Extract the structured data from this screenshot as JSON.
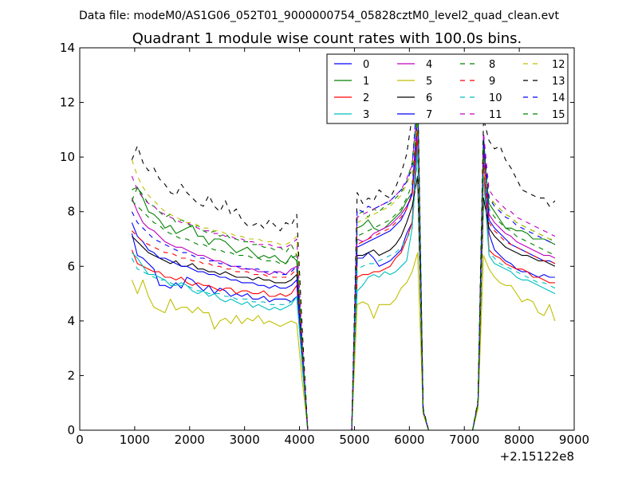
{
  "header": {
    "suptitle": "Data file: modeM0/AS1G06_052T01_9000000754_05828cztM0_level2_quad_clean.evt"
  },
  "chart_data": {
    "type": "line",
    "title": "Quadrant 1 module wise count rates with 100.0s bins.",
    "xlabel": "",
    "ylabel": "",
    "xlim": [
      0,
      9000
    ],
    "ylim": [
      0,
      14
    ],
    "x_offset_label": "+2.15122e8",
    "xticks": [
      0,
      1000,
      2000,
      3000,
      4000,
      5000,
      6000,
      7000,
      8000,
      9000
    ],
    "xtick_labels": [
      "0",
      "1000",
      "2000",
      "3000",
      "4000",
      "5000",
      "6000",
      "7000",
      "8000",
      "9000"
    ],
    "yticks": [
      0,
      2,
      4,
      6,
      8,
      10,
      12,
      14
    ],
    "ytick_labels": [
      "0",
      "2",
      "4",
      "6",
      "8",
      "10",
      "12",
      "14"
    ],
    "legend_position": "top-right",
    "legend_ncol": 4,
    "x": [
      950,
      1050,
      1150,
      1250,
      1350,
      1450,
      1550,
      1650,
      1750,
      1850,
      1950,
      2050,
      2150,
      2250,
      2350,
      2450,
      2550,
      2650,
      2750,
      2850,
      2950,
      3050,
      3150,
      3250,
      3350,
      3450,
      3550,
      3650,
      3750,
      3850,
      3950,
      4050,
      4150,
      4250,
      4950,
      5050,
      5150,
      5250,
      5350,
      5450,
      5550,
      5650,
      5750,
      5850,
      5950,
      6050,
      6150,
      6250,
      6350,
      7150,
      7250,
      7350,
      7450,
      7550,
      7650,
      7750,
      7850,
      7950,
      8050,
      8150,
      8250,
      8350,
      8450,
      8550,
      8650
    ],
    "series": [
      {
        "name": "0",
        "color": "#0000ff",
        "dash": "solid",
        "values": [
          7.2,
          6.4,
          6.3,
          6.1,
          5.9,
          5.3,
          5.3,
          5.2,
          5.4,
          5.2,
          5.6,
          5.5,
          5.3,
          5.1,
          5.3,
          5.0,
          5.2,
          5.1,
          4.9,
          5.0,
          4.9,
          5.0,
          4.8,
          4.8,
          4.9,
          4.7,
          4.8,
          4.8,
          4.8,
          4.7,
          4.9,
          2.5,
          0.0,
          0.0,
          0.0,
          6.3,
          6.3,
          6.5,
          6.3,
          6.0,
          6.1,
          6.2,
          6.4,
          6.6,
          7.2,
          7.6,
          10.9,
          0.7,
          0.0,
          0.0,
          1.0,
          9.8,
          7.2,
          6.6,
          6.4,
          6.2,
          6.1,
          5.9,
          5.8,
          5.8,
          5.7,
          5.6,
          5.7,
          5.6,
          5.6
        ]
      },
      {
        "name": "1",
        "color": "#008000",
        "dash": "solid",
        "values": [
          8.8,
          8.9,
          8.5,
          8.0,
          7.9,
          7.7,
          7.4,
          7.5,
          7.2,
          7.3,
          7.4,
          7.5,
          7.1,
          7.1,
          6.8,
          7.0,
          7.0,
          6.9,
          6.7,
          6.5,
          6.6,
          6.7,
          6.5,
          6.3,
          6.4,
          6.3,
          6.4,
          6.2,
          6.1,
          6.4,
          6.2,
          3.0,
          0.0,
          0.0,
          0.0,
          7.4,
          7.5,
          7.7,
          7.4,
          7.3,
          7.4,
          7.6,
          7.8,
          8.0,
          8.4,
          8.7,
          11.5,
          0.7,
          0.0,
          0.0,
          1.0,
          10.2,
          8.3,
          8.0,
          7.7,
          7.4,
          7.4,
          7.3,
          7.3,
          7.2,
          7.0,
          7.0,
          7.0,
          6.9,
          6.8
        ]
      },
      {
        "name": "2",
        "color": "#ff0000",
        "dash": "solid",
        "values": [
          6.6,
          6.1,
          6.0,
          5.9,
          5.8,
          5.8,
          5.6,
          5.6,
          5.5,
          5.6,
          5.4,
          5.3,
          5.4,
          5.3,
          5.3,
          5.2,
          5.1,
          5.2,
          5.2,
          5.0,
          5.1,
          5.1,
          5.0,
          5.0,
          5.1,
          4.9,
          4.9,
          5.0,
          4.9,
          5.0,
          5.3,
          2.5,
          0.0,
          0.0,
          0.0,
          5.6,
          5.7,
          5.7,
          5.8,
          5.8,
          5.9,
          6.0,
          6.3,
          6.5,
          7.0,
          7.6,
          10.6,
          0.7,
          0.0,
          0.0,
          1.0,
          9.8,
          6.6,
          6.4,
          6.3,
          6.1,
          6.0,
          5.9,
          5.9,
          5.8,
          5.6,
          5.6,
          5.5,
          5.4,
          5.4
        ]
      },
      {
        "name": "3",
        "color": "#00bfbf",
        "dash": "solid",
        "values": [
          6.5,
          6.3,
          6.0,
          5.7,
          5.7,
          5.6,
          5.5,
          5.3,
          5.3,
          5.4,
          5.3,
          5.1,
          5.0,
          5.1,
          4.9,
          5.0,
          4.8,
          4.7,
          4.8,
          4.7,
          4.6,
          4.7,
          4.5,
          4.6,
          4.5,
          4.4,
          4.5,
          4.4,
          4.5,
          4.6,
          4.9,
          2.4,
          0.0,
          0.0,
          0.0,
          5.1,
          5.3,
          5.6,
          5.7,
          5.6,
          5.8,
          5.7,
          5.8,
          6.0,
          6.2,
          7.4,
          10.4,
          0.7,
          0.0,
          0.0,
          1.0,
          9.3,
          6.4,
          6.1,
          6.0,
          5.9,
          5.8,
          5.6,
          5.5,
          5.5,
          5.4,
          5.3,
          5.2,
          5.1,
          5.0
        ]
      },
      {
        "name": "4",
        "color": "#bf00bf",
        "dash": "solid",
        "values": [
          8.5,
          8.0,
          7.6,
          7.4,
          7.3,
          7.1,
          6.9,
          6.8,
          6.7,
          6.7,
          6.6,
          6.5,
          6.4,
          6.4,
          6.3,
          6.2,
          6.2,
          6.1,
          6.0,
          6.0,
          5.9,
          5.9,
          5.9,
          5.8,
          5.8,
          5.7,
          5.8,
          5.8,
          5.7,
          5.9,
          6.0,
          2.9,
          0.0,
          0.0,
          0.0,
          7.0,
          6.9,
          7.0,
          7.2,
          7.3,
          7.4,
          7.5,
          7.7,
          7.9,
          8.2,
          8.6,
          11.0,
          0.7,
          0.0,
          0.0,
          1.0,
          10.3,
          7.9,
          7.6,
          7.4,
          7.2,
          7.1,
          6.9,
          6.8,
          6.7,
          6.6,
          6.5,
          6.4,
          6.4,
          6.3
        ]
      },
      {
        "name": "5",
        "color": "#bfbf00",
        "dash": "solid",
        "values": [
          5.5,
          5.0,
          5.5,
          4.9,
          4.5,
          4.4,
          4.3,
          4.8,
          4.4,
          4.5,
          4.5,
          4.3,
          4.5,
          4.3,
          4.3,
          3.7,
          4.0,
          4.1,
          3.9,
          4.2,
          3.9,
          4.1,
          4.0,
          4.2,
          3.9,
          4.0,
          3.9,
          3.8,
          3.9,
          4.0,
          3.9,
          1.8,
          0.0,
          0.0,
          0.0,
          4.6,
          4.7,
          4.6,
          4.1,
          4.6,
          4.6,
          4.6,
          4.8,
          5.2,
          5.4,
          5.8,
          6.5,
          0.6,
          0.0,
          0.0,
          0.8,
          6.4,
          5.9,
          5.6,
          5.4,
          5.3,
          5.3,
          5.0,
          4.7,
          4.8,
          4.7,
          4.3,
          4.2,
          4.6,
          4.0
        ]
      },
      {
        "name": "6",
        "color": "#000000",
        "dash": "solid",
        "values": [
          7.1,
          6.9,
          6.7,
          6.5,
          6.4,
          6.3,
          6.2,
          6.1,
          6.2,
          6.0,
          6.0,
          6.1,
          5.9,
          5.9,
          5.8,
          5.8,
          5.7,
          5.8,
          5.7,
          5.6,
          5.6,
          5.6,
          5.5,
          5.6,
          5.5,
          5.5,
          5.4,
          5.4,
          5.4,
          5.5,
          5.7,
          2.8,
          0.0,
          0.0,
          0.0,
          6.4,
          6.4,
          6.5,
          6.6,
          6.4,
          6.5,
          6.6,
          6.8,
          7.1,
          7.6,
          8.2,
          9.3,
          0.7,
          0.0,
          0.0,
          1.0,
          8.5,
          7.4,
          7.1,
          6.9,
          6.7,
          6.6,
          6.5,
          6.4,
          6.4,
          6.3,
          6.2,
          6.2,
          6.1,
          6.0
        ]
      },
      {
        "name": "7",
        "color": "#0000ff",
        "dash": "solid",
        "values": [
          7.6,
          7.1,
          6.9,
          6.6,
          6.5,
          6.3,
          6.3,
          6.2,
          6.1,
          6.0,
          6.0,
          5.9,
          5.8,
          5.8,
          5.7,
          5.7,
          5.6,
          5.6,
          5.5,
          5.5,
          5.4,
          5.4,
          5.4,
          5.3,
          5.3,
          5.2,
          5.3,
          5.2,
          5.2,
          5.3,
          5.5,
          2.7,
          0.0,
          0.0,
          0.0,
          6.7,
          6.8,
          6.9,
          7.0,
          7.1,
          7.2,
          7.3,
          7.5,
          7.7,
          8.1,
          8.7,
          11.6,
          0.7,
          0.0,
          0.0,
          1.0,
          10.8,
          7.7,
          7.4,
          7.2,
          7.0,
          6.8,
          6.7,
          6.6,
          6.5,
          6.4,
          6.3,
          6.2,
          6.2,
          6.1
        ]
      },
      {
        "name": "8",
        "color": "#008000",
        "dash": "dashed",
        "values": [
          8.4,
          8.9,
          8.6,
          8.3,
          8.2,
          8.0,
          7.8,
          7.9,
          7.6,
          7.7,
          7.6,
          7.4,
          7.5,
          7.3,
          7.2,
          7.3,
          7.1,
          7.2,
          7.0,
          7.0,
          6.9,
          6.9,
          6.8,
          6.8,
          6.7,
          6.7,
          6.6,
          6.7,
          6.5,
          6.8,
          6.4,
          3.1,
          0.0,
          0.0,
          0.0,
          7.9,
          8.0,
          7.8,
          8.1,
          8.0,
          8.2,
          8.3,
          8.5,
          8.7,
          9.1,
          9.8,
          12.1,
          0.7,
          0.0,
          0.0,
          1.0,
          10.6,
          8.5,
          8.3,
          8.1,
          7.9,
          7.8,
          7.6,
          7.5,
          7.4,
          7.3,
          7.2,
          7.1,
          7.0,
          6.9
        ]
      },
      {
        "name": "9",
        "color": "#ff0000",
        "dash": "dashed",
        "values": [
          7.3,
          7.1,
          6.9,
          6.8,
          6.7,
          6.6,
          6.5,
          6.5,
          6.4,
          6.3,
          6.3,
          6.2,
          6.2,
          6.1,
          6.1,
          6.0,
          6.0,
          5.9,
          5.9,
          5.8,
          5.8,
          5.8,
          5.7,
          5.7,
          5.7,
          5.6,
          5.6,
          5.6,
          5.6,
          5.7,
          5.9,
          2.8,
          0.0,
          0.0,
          0.0,
          6.8,
          6.9,
          7.0,
          7.1,
          7.2,
          7.3,
          7.4,
          7.6,
          7.8,
          8.1,
          8.6,
          11.2,
          0.7,
          0.0,
          0.0,
          1.0,
          10.1,
          7.6,
          7.3,
          7.1,
          6.9,
          6.8,
          6.7,
          6.6,
          6.5,
          6.4,
          6.3,
          6.2,
          6.2,
          6.1
        ]
      },
      {
        "name": "10",
        "color": "#00bfbf",
        "dash": "dashed",
        "values": [
          6.3,
          5.9,
          5.8,
          5.7,
          5.6,
          5.5,
          5.5,
          5.4,
          5.3,
          5.3,
          5.3,
          5.2,
          5.1,
          5.1,
          5.0,
          5.0,
          5.0,
          4.9,
          4.9,
          4.8,
          4.8,
          4.8,
          4.7,
          4.7,
          4.7,
          4.6,
          4.6,
          4.6,
          4.6,
          4.7,
          4.9,
          2.4,
          0.0,
          0.0,
          0.0,
          5.9,
          6.0,
          6.1,
          6.1,
          6.2,
          6.3,
          6.4,
          6.5,
          6.7,
          7.0,
          7.4,
          10.1,
          0.7,
          0.0,
          0.0,
          1.0,
          9.2,
          6.5,
          6.3,
          6.1,
          6.0,
          5.9,
          5.8,
          5.7,
          5.6,
          5.5,
          5.4,
          5.4,
          5.3,
          5.2
        ]
      },
      {
        "name": "11",
        "color": "#bf00bf",
        "dash": "dashed",
        "values": [
          9.3,
          8.8,
          8.5,
          8.3,
          8.2,
          8.0,
          7.9,
          7.8,
          7.7,
          7.6,
          7.6,
          7.5,
          7.4,
          7.3,
          7.3,
          7.2,
          7.2,
          7.1,
          7.1,
          7.0,
          7.0,
          6.9,
          6.9,
          6.8,
          6.8,
          6.8,
          6.7,
          6.7,
          6.7,
          6.8,
          7.0,
          3.3,
          0.0,
          0.0,
          0.0,
          7.8,
          7.9,
          8.0,
          8.1,
          8.2,
          8.3,
          8.4,
          8.6,
          8.8,
          9.2,
          9.7,
          11.9,
          0.7,
          0.0,
          0.0,
          1.0,
          10.9,
          8.8,
          8.5,
          8.3,
          8.1,
          8.0,
          7.8,
          7.7,
          7.6,
          7.5,
          7.4,
          7.3,
          7.2,
          7.1
        ]
      },
      {
        "name": "12",
        "color": "#bfbf00",
        "dash": "dashed",
        "values": [
          9.9,
          9.3,
          8.9,
          8.6,
          8.4,
          8.2,
          8.0,
          7.9,
          7.8,
          7.7,
          7.6,
          7.6,
          7.5,
          7.4,
          7.4,
          7.3,
          7.3,
          7.2,
          7.2,
          7.1,
          7.1,
          7.0,
          7.0,
          7.0,
          6.9,
          6.9,
          6.9,
          6.8,
          6.8,
          6.9,
          7.1,
          3.4,
          0.0,
          0.0,
          0.0,
          7.6,
          7.7,
          7.8,
          7.9,
          8.0,
          8.1,
          8.2,
          8.4,
          8.6,
          9.0,
          9.5,
          11.3,
          0.7,
          0.0,
          0.0,
          1.0,
          9.5,
          8.6,
          8.3,
          8.1,
          7.9,
          7.8,
          7.6,
          7.5,
          7.4,
          7.3,
          7.2,
          7.1,
          7.0,
          7.0
        ]
      },
      {
        "name": "13",
        "color": "#000000",
        "dash": "dashed",
        "values": [
          9.9,
          10.4,
          9.8,
          9.5,
          9.6,
          9.2,
          9.0,
          8.7,
          8.6,
          9.0,
          8.7,
          8.5,
          8.3,
          8.2,
          8.6,
          8.2,
          8.0,
          8.4,
          7.9,
          8.1,
          7.7,
          7.5,
          7.5,
          7.6,
          7.4,
          7.7,
          7.5,
          7.3,
          7.6,
          7.5,
          7.9,
          3.7,
          0.0,
          0.0,
          0.0,
          8.7,
          8.3,
          8.5,
          8.4,
          8.8,
          8.6,
          8.5,
          8.9,
          9.4,
          10.1,
          11.5,
          12.9,
          0.8,
          0.0,
          0.0,
          1.1,
          11.4,
          10.6,
          10.3,
          10.4,
          9.9,
          9.6,
          9.2,
          8.8,
          8.7,
          8.6,
          8.5,
          8.5,
          8.2,
          8.4
        ]
      },
      {
        "name": "14",
        "color": "#0000ff",
        "dash": "dashed",
        "values": [
          8.0,
          7.6,
          7.4,
          7.2,
          7.0,
          6.9,
          6.8,
          6.7,
          6.6,
          6.5,
          6.5,
          6.4,
          6.3,
          6.3,
          6.2,
          6.2,
          6.1,
          6.1,
          6.0,
          6.0,
          6.0,
          5.9,
          5.9,
          5.9,
          5.8,
          5.8,
          5.8,
          5.7,
          5.7,
          5.8,
          6.0,
          2.9,
          0.0,
          0.0,
          0.0,
          8.1,
          8.0,
          8.2,
          8.1,
          8.2,
          8.3,
          8.4,
          8.6,
          8.8,
          9.1,
          9.6,
          12.5,
          0.7,
          0.0,
          0.0,
          1.0,
          10.5,
          8.5,
          8.2,
          8.0,
          7.8,
          7.7,
          7.5,
          7.4,
          7.3,
          7.2,
          7.1,
          7.0,
          6.9,
          6.8
        ]
      },
      {
        "name": "15",
        "color": "#008000",
        "dash": "dashed",
        "values": [
          8.4,
          8.2,
          8.0,
          7.8,
          7.6,
          7.5,
          7.3,
          7.2,
          7.1,
          7.0,
          7.0,
          6.9,
          6.8,
          6.8,
          6.7,
          6.6,
          6.6,
          6.5,
          6.5,
          6.4,
          6.4,
          6.4,
          6.3,
          6.3,
          6.2,
          6.2,
          6.2,
          6.1,
          6.1,
          6.3,
          6.4,
          3.1,
          0.0,
          0.0,
          0.0,
          7.1,
          7.2,
          7.3,
          7.4,
          7.5,
          7.6,
          7.7,
          7.9,
          8.1,
          8.5,
          9.0,
          11.7,
          0.7,
          0.0,
          0.0,
          1.0,
          10.4,
          8.1,
          7.8,
          7.6,
          7.4,
          7.3,
          7.1,
          7.0,
          6.9,
          6.8,
          6.7,
          6.6,
          6.5,
          6.4
        ]
      }
    ]
  }
}
